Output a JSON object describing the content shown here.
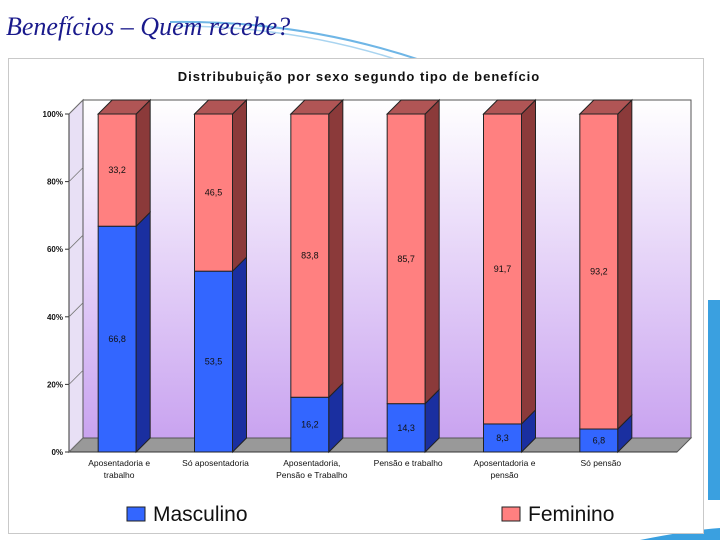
{
  "slide": {
    "title": "Benefícios – Quem recebe?"
  },
  "colors": {
    "masculino": "#3366ff",
    "feminino": "#ff8080",
    "title": "#1a1a8c"
  },
  "chart_data": {
    "type": "bar",
    "stacked": true,
    "percent": true,
    "title": "Distribubuição por sexo segundo tipo de benefício",
    "xlabel": "",
    "ylabel": "",
    "ylim": [
      0,
      100
    ],
    "yticks": [
      "0%",
      "20%",
      "40%",
      "60%",
      "80%",
      "100%"
    ],
    "categories": [
      [
        "Aposentadoria e",
        "trabalho"
      ],
      [
        "Só aposentadoria"
      ],
      [
        "Aposentadoria,",
        "Pensão e Trabalho"
      ],
      [
        "Pensão e trabalho"
      ],
      [
        "Aposentadoria e",
        "pensão"
      ],
      [
        "Só pensão"
      ]
    ],
    "series": [
      {
        "name": "Masculino",
        "values": [
          66.8,
          53.5,
          16.2,
          14.3,
          8.3,
          6.8
        ],
        "labels": [
          "66,8",
          "53,5",
          "16,2",
          "14,3",
          "8,3",
          "6,8"
        ]
      },
      {
        "name": "Feminino",
        "values": [
          33.2,
          46.5,
          83.8,
          85.7,
          91.7,
          93.2
        ],
        "labels": [
          "33,2",
          "46,5",
          "83,8",
          "85,7",
          "91,7",
          "93,2"
        ]
      }
    ],
    "legend_position": "bottom",
    "grid": false
  }
}
